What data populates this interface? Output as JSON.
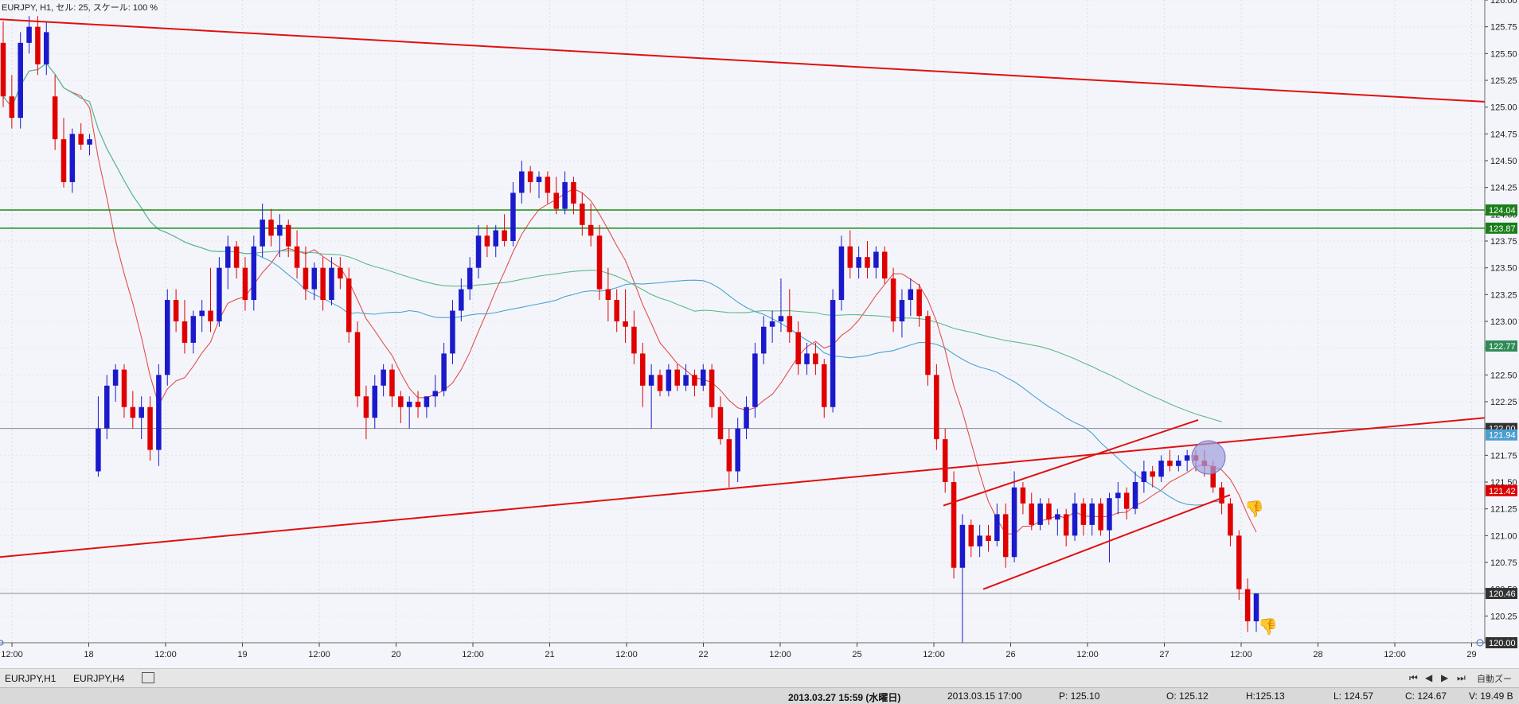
{
  "header": {
    "info": "EURJPY, H1, セル: 25, スケール: 100 %"
  },
  "chart_data": {
    "type": "candlestick",
    "symbol": "EURJPY",
    "timeframe": "H1",
    "yticks": [
      "126.00",
      "125.75",
      "125.50",
      "125.25",
      "125.00",
      "124.75",
      "124.50",
      "124.25",
      "124.00",
      "123.75",
      "123.50",
      "123.25",
      "123.00",
      "122.75",
      "122.50",
      "122.25",
      "122.00",
      "121.75",
      "121.50",
      "121.25",
      "121.00",
      "120.75",
      "120.50",
      "120.25",
      "120.00"
    ],
    "ylim": [
      120.0,
      126.0
    ],
    "xticks": [
      "12:00",
      "18",
      "12:00",
      "19",
      "12:00",
      "20",
      "12:00",
      "21",
      "12:00",
      "22",
      "12:00",
      "25",
      "12:00",
      "26",
      "12:00",
      "27",
      "12:00",
      "28",
      "12:00",
      "29"
    ],
    "price_labels": [
      {
        "value": "124.04",
        "price": 124.04,
        "color": "#1a7f1a"
      },
      {
        "value": "123.87",
        "price": 123.87,
        "color": "#1a7f1a"
      },
      {
        "value": "122.77",
        "price": 122.77,
        "color": "#2e8b57"
      },
      {
        "value": "122.00",
        "price": 122.0,
        "color": "#333333"
      },
      {
        "value": "121.94",
        "price": 121.94,
        "color": "#4a9fd0"
      },
      {
        "value": "121.42",
        "price": 121.42,
        "color": "#dd0000"
      },
      {
        "value": "120.46",
        "price": 120.46,
        "color": "#333333"
      },
      {
        "value": "120.00",
        "price": 120.0,
        "color": "#333333"
      }
    ],
    "horizontal_lines": [
      124.04,
      123.87,
      122.0,
      120.46,
      120.0
    ],
    "candles": [
      [
        125.6,
        125.8,
        125.0,
        125.1
      ],
      [
        125.1,
        125.3,
        124.8,
        124.9
      ],
      [
        124.9,
        125.7,
        124.8,
        125.6
      ],
      [
        125.6,
        125.85,
        125.5,
        125.75
      ],
      [
        125.75,
        125.85,
        125.3,
        125.4
      ],
      [
        125.4,
        125.8,
        125.3,
        125.7
      ],
      [
        125.1,
        125.3,
        124.6,
        124.7
      ],
      [
        124.7,
        124.9,
        124.25,
        124.3
      ],
      [
        124.3,
        124.8,
        124.2,
        124.75
      ],
      [
        124.75,
        124.85,
        124.6,
        124.65
      ],
      [
        124.65,
        124.75,
        124.55,
        124.7
      ],
      [
        121.6,
        122.3,
        121.55,
        122.0
      ],
      [
        122.0,
        122.5,
        121.9,
        122.4
      ],
      [
        122.4,
        122.6,
        122.25,
        122.55
      ],
      [
        122.55,
        122.6,
        122.1,
        122.2
      ],
      [
        122.2,
        122.35,
        122.0,
        122.1
      ],
      [
        122.1,
        122.3,
        121.9,
        122.2
      ],
      [
        122.2,
        122.3,
        121.7,
        121.8
      ],
      [
        121.8,
        122.6,
        121.65,
        122.5
      ],
      [
        122.5,
        123.3,
        122.4,
        123.2
      ],
      [
        123.2,
        123.3,
        122.9,
        123.0
      ],
      [
        123.0,
        123.2,
        122.7,
        122.8
      ],
      [
        122.8,
        123.1,
        122.7,
        123.05
      ],
      [
        123.05,
        123.2,
        122.9,
        123.1
      ],
      [
        123.1,
        123.5,
        122.9,
        123.0
      ],
      [
        123.0,
        123.6,
        122.95,
        123.5
      ],
      [
        123.5,
        123.8,
        123.3,
        123.7
      ],
      [
        123.7,
        123.75,
        123.4,
        123.5
      ],
      [
        123.5,
        123.6,
        123.1,
        123.2
      ],
      [
        123.2,
        123.8,
        123.1,
        123.7
      ],
      [
        123.7,
        124.1,
        123.6,
        123.95
      ],
      [
        123.95,
        124.05,
        123.7,
        123.8
      ],
      [
        123.8,
        124.0,
        123.6,
        123.9
      ],
      [
        123.9,
        123.95,
        123.6,
        123.7
      ],
      [
        123.7,
        123.85,
        123.4,
        123.5
      ],
      [
        123.5,
        123.7,
        123.2,
        123.3
      ],
      [
        123.3,
        123.55,
        123.2,
        123.5
      ],
      [
        123.5,
        123.6,
        123.1,
        123.2
      ],
      [
        123.2,
        123.6,
        123.15,
        123.5
      ],
      [
        123.5,
        123.6,
        123.3,
        123.4
      ],
      [
        123.4,
        123.5,
        122.8,
        122.9
      ],
      [
        122.9,
        123.0,
        122.2,
        122.3
      ],
      [
        122.3,
        122.4,
        121.9,
        122.1
      ],
      [
        122.1,
        122.5,
        122.0,
        122.4
      ],
      [
        122.4,
        122.6,
        122.3,
        122.55
      ],
      [
        122.55,
        122.6,
        122.2,
        122.3
      ],
      [
        122.3,
        122.35,
        122.05,
        122.2
      ],
      [
        122.2,
        122.3,
        122.0,
        122.25
      ],
      [
        122.25,
        122.35,
        122.1,
        122.2
      ],
      [
        122.2,
        122.3,
        122.1,
        122.3
      ],
      [
        122.3,
        122.5,
        122.2,
        122.35
      ],
      [
        122.35,
        122.8,
        122.3,
        122.7
      ],
      [
        122.7,
        123.2,
        122.6,
        123.1
      ],
      [
        123.1,
        123.4,
        123.0,
        123.3
      ],
      [
        123.3,
        123.6,
        123.2,
        123.5
      ],
      [
        123.5,
        123.9,
        123.4,
        123.8
      ],
      [
        123.8,
        123.9,
        123.6,
        123.7
      ],
      [
        123.7,
        123.9,
        123.6,
        123.85
      ],
      [
        123.85,
        124.0,
        123.7,
        123.75
      ],
      [
        123.75,
        124.3,
        123.7,
        124.2
      ],
      [
        124.2,
        124.5,
        124.1,
        124.4
      ],
      [
        124.4,
        124.45,
        124.2,
        124.3
      ],
      [
        124.3,
        124.4,
        124.15,
        124.35
      ],
      [
        124.35,
        124.4,
        124.1,
        124.2
      ],
      [
        124.2,
        124.35,
        124.0,
        124.05
      ],
      [
        124.05,
        124.4,
        124.0,
        124.3
      ],
      [
        124.3,
        124.35,
        124.0,
        124.1
      ],
      [
        124.1,
        124.2,
        123.8,
        123.9
      ],
      [
        123.9,
        124.1,
        123.7,
        123.8
      ],
      [
        123.8,
        123.9,
        123.2,
        123.3
      ],
      [
        123.3,
        123.5,
        123.0,
        123.2
      ],
      [
        123.2,
        123.3,
        122.9,
        123.0
      ],
      [
        123.0,
        123.3,
        122.8,
        122.95
      ],
      [
        122.95,
        123.1,
        122.6,
        122.7
      ],
      [
        122.7,
        122.8,
        122.2,
        122.4
      ],
      [
        122.4,
        122.6,
        122.0,
        122.5
      ],
      [
        122.5,
        122.55,
        122.3,
        122.35
      ],
      [
        122.35,
        122.6,
        122.3,
        122.55
      ],
      [
        122.55,
        122.6,
        122.35,
        122.4
      ],
      [
        122.4,
        122.6,
        122.35,
        122.5
      ],
      [
        122.5,
        122.55,
        122.3,
        122.4
      ],
      [
        122.4,
        122.6,
        122.35,
        122.55
      ],
      [
        122.55,
        122.6,
        122.1,
        122.2
      ],
      [
        122.2,
        122.3,
        121.85,
        121.9
      ],
      [
        121.9,
        122.0,
        121.45,
        121.6
      ],
      [
        121.6,
        122.1,
        121.5,
        122.0
      ],
      [
        122.0,
        122.3,
        121.9,
        122.2
      ],
      [
        122.2,
        122.8,
        122.1,
        122.7
      ],
      [
        122.7,
        123.05,
        122.6,
        122.95
      ],
      [
        122.95,
        123.1,
        122.8,
        123.0
      ],
      [
        123.0,
        123.4,
        122.9,
        123.05
      ],
      [
        123.05,
        123.3,
        122.8,
        122.9
      ],
      [
        122.9,
        123.0,
        122.5,
        122.6
      ],
      [
        122.6,
        122.8,
        122.5,
        122.7
      ],
      [
        122.7,
        122.8,
        122.5,
        122.6
      ],
      [
        122.6,
        122.65,
        122.1,
        122.2
      ],
      [
        122.2,
        123.3,
        122.15,
        123.2
      ],
      [
        123.2,
        123.8,
        123.1,
        123.7
      ],
      [
        123.7,
        123.85,
        123.4,
        123.5
      ],
      [
        123.5,
        123.7,
        123.4,
        123.6
      ],
      [
        123.6,
        123.75,
        123.4,
        123.5
      ],
      [
        123.5,
        123.7,
        123.4,
        123.65
      ],
      [
        123.65,
        123.7,
        123.35,
        123.4
      ],
      [
        123.4,
        123.5,
        122.9,
        123.0
      ],
      [
        123.0,
        123.3,
        122.85,
        123.2
      ],
      [
        123.2,
        123.4,
        123.05,
        123.3
      ],
      [
        123.3,
        123.35,
        122.95,
        123.05
      ],
      [
        123.05,
        123.1,
        122.4,
        122.5
      ],
      [
        122.5,
        122.6,
        121.8,
        121.9
      ],
      [
        121.9,
        122.0,
        121.4,
        121.5
      ],
      [
        121.5,
        121.6,
        120.6,
        120.7
      ],
      [
        120.7,
        121.2,
        120.0,
        121.1
      ],
      [
        121.1,
        121.15,
        120.8,
        120.9
      ],
      [
        120.9,
        121.1,
        120.8,
        121.0
      ],
      [
        121.0,
        121.1,
        120.85,
        120.95
      ],
      [
        120.95,
        121.3,
        120.9,
        121.2
      ],
      [
        121.2,
        121.3,
        120.7,
        120.8
      ],
      [
        120.8,
        121.6,
        120.75,
        121.45
      ],
      [
        121.45,
        121.5,
        121.2,
        121.3
      ],
      [
        121.3,
        121.4,
        121.05,
        121.1
      ],
      [
        121.1,
        121.35,
        121.05,
        121.3
      ],
      [
        121.3,
        121.35,
        121.1,
        121.15
      ],
      [
        121.15,
        121.25,
        121.0,
        121.2
      ],
      [
        121.2,
        121.25,
        120.9,
        121.0
      ],
      [
        121.0,
        121.4,
        120.95,
        121.3
      ],
      [
        121.3,
        121.35,
        121.0,
        121.1
      ],
      [
        121.1,
        121.35,
        121.0,
        121.3
      ],
      [
        121.3,
        121.35,
        121.0,
        121.05
      ],
      [
        121.05,
        121.4,
        120.75,
        121.35
      ],
      [
        121.35,
        121.5,
        121.2,
        121.4
      ],
      [
        121.4,
        121.45,
        121.15,
        121.25
      ],
      [
        121.25,
        121.6,
        121.2,
        121.5
      ],
      [
        121.5,
        121.7,
        121.4,
        121.6
      ],
      [
        121.6,
        121.65,
        121.45,
        121.55
      ],
      [
        121.55,
        121.75,
        121.5,
        121.7
      ],
      [
        121.7,
        121.8,
        121.6,
        121.65
      ],
      [
        121.65,
        121.75,
        121.6,
        121.7
      ],
      [
        121.7,
        121.8,
        121.6,
        121.75
      ],
      [
        121.75,
        121.8,
        121.6,
        121.7
      ],
      [
        121.7,
        121.8,
        121.55,
        121.65
      ],
      [
        121.65,
        121.7,
        121.4,
        121.45
      ],
      [
        121.45,
        121.5,
        121.2,
        121.3
      ],
      [
        121.3,
        121.35,
        120.9,
        121.0
      ],
      [
        121.0,
        121.05,
        120.4,
        120.5
      ],
      [
        120.5,
        120.6,
        120.1,
        120.2
      ],
      [
        120.2,
        120.46,
        120.1,
        120.46
      ]
    ]
  },
  "tabs": [
    "EURJPY,H1",
    "EURJPY,H4"
  ],
  "right_label": "自動ズーム",
  "status": {
    "datetime": "2013.03.27 15:59 (水曜日)",
    "bar_time": "2013.03.15 17:00",
    "p": "P: 125.10",
    "o": "O: 125.12",
    "h": "H:125.13",
    "l": "L: 124.57",
    "c": "C: 124.67",
    "v": "V: 19.49 B"
  }
}
